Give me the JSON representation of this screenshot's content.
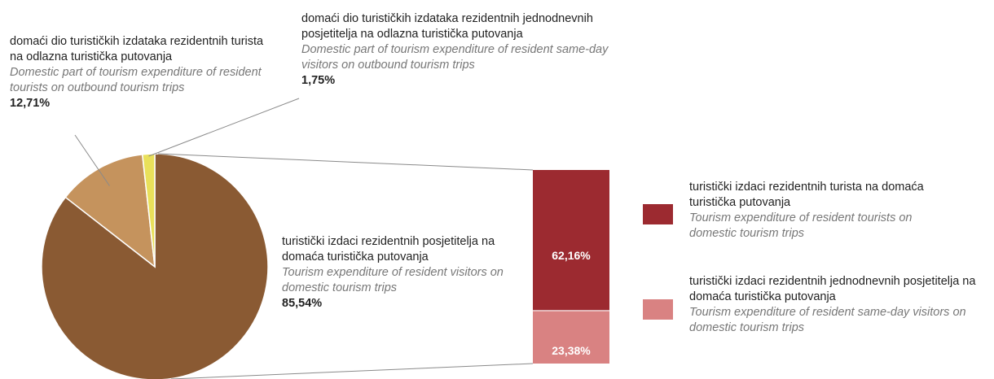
{
  "chart_data": [
    {
      "type": "pie",
      "slices": [
        {
          "label_hr": "turistički izdaci rezidentnih posjetitelja na domaća turistička putovanja",
          "label_en": "Tourism expenditure of resident visitors on domestic tourism trips",
          "value": 85.54,
          "value_text": "85,54%",
          "color": "#8a5a33"
        },
        {
          "label_hr": "domaći dio turističkih izdataka rezidentnih turista na odlazna turistička putovanja",
          "label_en": "Domestic part of tourism expenditure of resident tourists on outbound tourism trips",
          "value": 12.71,
          "value_text": "12,71%",
          "color": "#c5935d"
        },
        {
          "label_hr": "domaći dio turističkih izdataka rezidentnih jednodnevnih posjetitelja na odlazna turistička putovanja",
          "label_en": "Domestic part of tourism expenditure of resident same-day visitors on outbound tourism trips",
          "value": 1.75,
          "value_text": "1,75%",
          "color": "#e9e05a"
        }
      ]
    },
    {
      "type": "bar",
      "stacked": true,
      "series": [
        {
          "name_hr": "turistički izdaci rezidentnih turista na domaća turistička putovanja",
          "name_en": "Tourism expenditure of resident tourists on domestic tourism trips",
          "value": 62.16,
          "value_text": "62,16%",
          "color": "#9c2a30"
        },
        {
          "name_hr": "turistički izdaci rezidentnih jednodnevnih posjetitelja na domaća turistička putovanja",
          "name_en": "Tourism expenditure of resident same-day visitors on domestic tourism trips",
          "value": 23.38,
          "value_text": "23,38%",
          "color": "#d98282"
        }
      ],
      "legend": "right"
    }
  ]
}
